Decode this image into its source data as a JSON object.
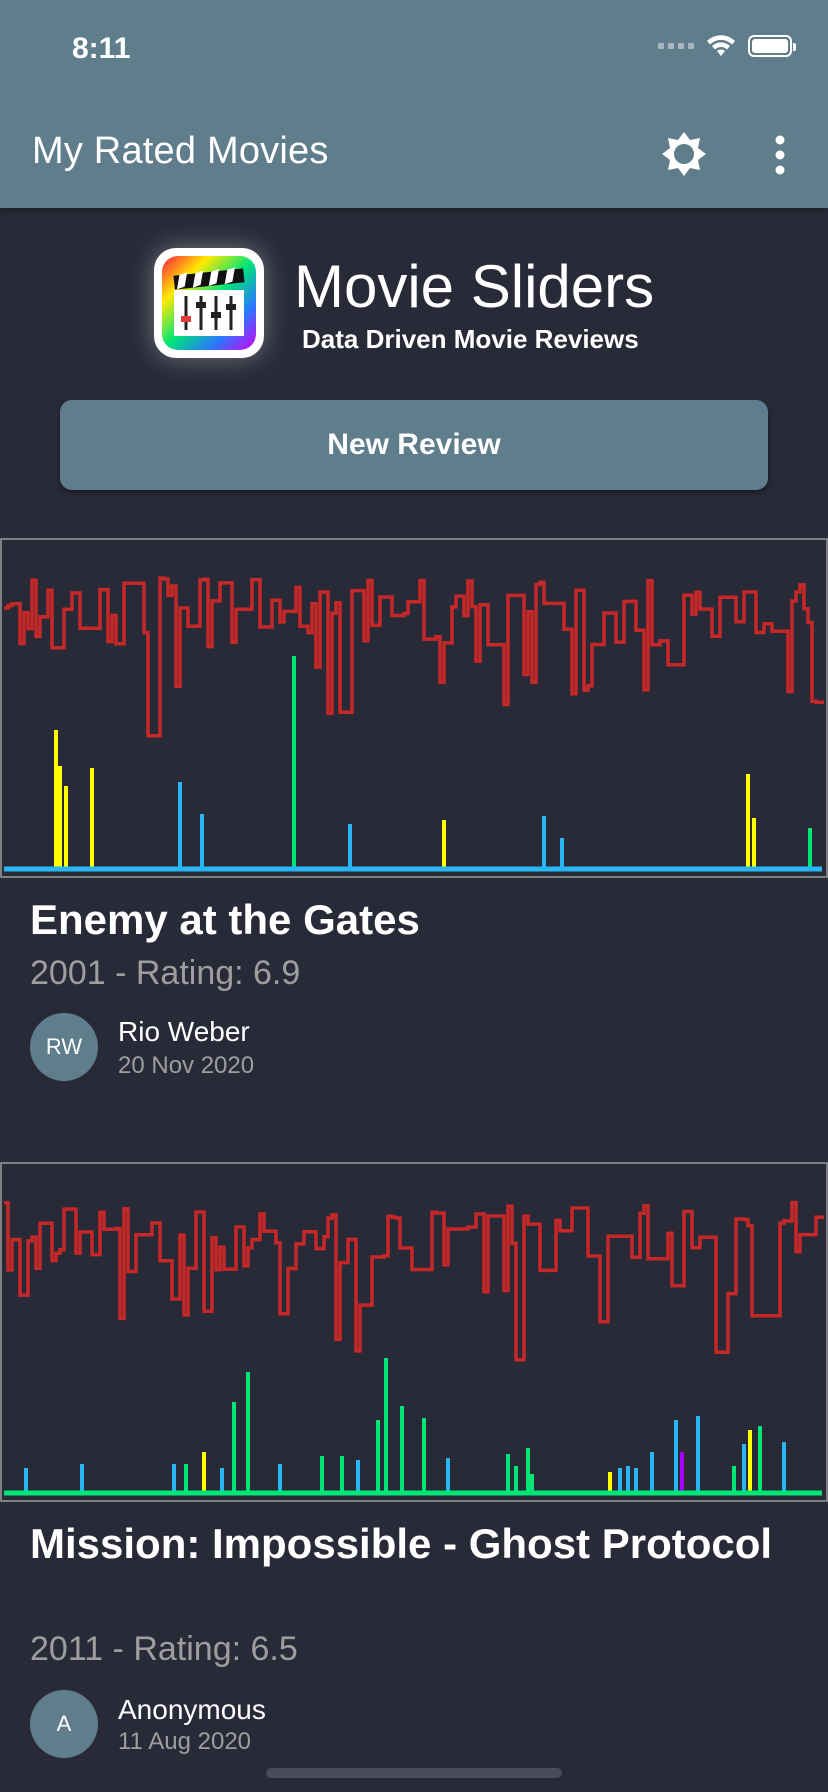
{
  "status_bar": {
    "time": "8:11"
  },
  "appbar": {
    "title": "My Rated Movies",
    "brightness_icon": "brightness-icon",
    "more_icon": "more-vert-icon"
  },
  "brand": {
    "title": "Movie Sliders",
    "subtitle": "Data Driven Movie Reviews"
  },
  "new_review_label": "New Review",
  "reviews": [
    {
      "title": "Enemy at the Gates",
      "meta": "2001 - Rating: 6.9",
      "reviewer_initials": "RW",
      "reviewer": "Rio Weber",
      "date": "20 Nov 2020"
    },
    {
      "title": "Mission: Impossible - Ghost Protocol",
      "meta": "2011 - Rating: 6.5",
      "reviewer_initials": "A",
      "reviewer": "Anonymous",
      "date": "11 Aug 2020"
    }
  ],
  "colors": {
    "background": "#282a38",
    "appbar": "#607d8b",
    "red_series": "#c62828",
    "green_series": "#00e676",
    "blue_series": "#29b6f6",
    "yellow_series": "#ffff00",
    "purple_series": "#aa00ff"
  }
}
